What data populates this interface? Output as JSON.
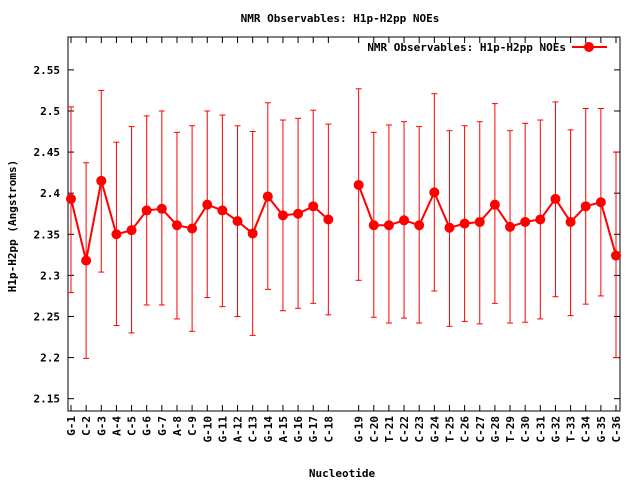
{
  "chart_data": {
    "type": "line",
    "title": "NMR Observables: H1p-H2pp NOEs",
    "xlabel": "Nucleotide",
    "ylabel": "H1p-H2pp (Angstroms)",
    "ylim": [
      2.135,
      2.59
    ],
    "yticks": [
      2.15,
      2.2,
      2.25,
      2.3,
      2.35,
      2.4,
      2.45,
      2.5,
      2.55
    ],
    "ytick_labels": [
      "2.15",
      "2.2",
      "2.25",
      "2.3",
      "2.35",
      "2.4",
      "2.45",
      "2.5",
      "2.55"
    ],
    "legend_position": "top-right",
    "grid": false,
    "series": [
      {
        "name": "NMR Observables: H1p-H2pp NOEs",
        "color": "#ff0000",
        "x": [
          "G-1",
          "C-2",
          "G-3",
          "A-4",
          "C-5",
          "G-6",
          "G-7",
          "A-8",
          "C-9",
          "G-10",
          "G-11",
          "A-12",
          "C-13",
          "G-14",
          "A-15",
          "G-16",
          "G-17",
          "C-18",
          "G-19",
          "C-20",
          "T-21",
          "C-22",
          "C-23",
          "G-24",
          "T-25",
          "C-26",
          "C-27",
          "G-28",
          "T-29",
          "C-30",
          "C-31",
          "G-32",
          "T-33",
          "C-34",
          "G-35",
          "C-36"
        ],
        "y": [
          2.393,
          2.318,
          2.415,
          2.35,
          2.355,
          2.379,
          2.381,
          2.361,
          2.357,
          2.386,
          2.379,
          2.366,
          2.351,
          2.396,
          2.373,
          2.375,
          2.384,
          2.368,
          2.41,
          2.361,
          2.361,
          2.367,
          2.361,
          2.401,
          2.358,
          2.363,
          2.365,
          2.386,
          2.359,
          2.365,
          2.368,
          2.393,
          2.365,
          2.384,
          2.389,
          2.324
        ],
        "y_low": [
          2.279,
          2.199,
          2.304,
          2.239,
          2.23,
          2.264,
          2.264,
          2.247,
          2.232,
          2.273,
          2.262,
          2.25,
          2.227,
          2.283,
          2.257,
          2.26,
          2.266,
          2.252,
          2.294,
          2.249,
          2.242,
          2.248,
          2.242,
          2.281,
          2.238,
          2.244,
          2.241,
          2.266,
          2.242,
          2.243,
          2.247,
          2.274,
          2.251,
          2.265,
          2.275,
          2.2
        ],
        "y_high": [
          2.505,
          2.437,
          2.525,
          2.462,
          2.481,
          2.494,
          2.5,
          2.474,
          2.482,
          2.5,
          2.495,
          2.482,
          2.475,
          2.51,
          2.489,
          2.491,
          2.501,
          2.484,
          2.527,
          2.474,
          2.483,
          2.487,
          2.481,
          2.521,
          2.476,
          2.482,
          2.487,
          2.509,
          2.476,
          2.485,
          2.489,
          2.511,
          2.477,
          2.503,
          2.503,
          2.45
        ],
        "gap_after": [
          "C-18"
        ]
      }
    ]
  }
}
